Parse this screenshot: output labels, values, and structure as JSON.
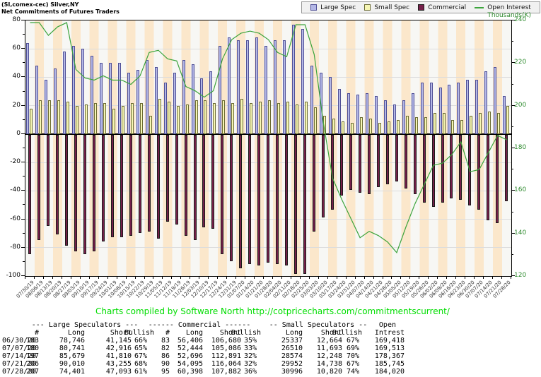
{
  "title": {
    "line1": "(SI,comex-cec) Silver,NY",
    "line2": "Net Commitments of Futures Traders"
  },
  "legend": {
    "items": [
      {
        "label": "Large Spec",
        "type": "box",
        "fill": "#b3b7e6",
        "border": "#4f4f96"
      },
      {
        "label": "Small Spec",
        "type": "box",
        "fill": "#f6f6b4",
        "border": "#6b6b32"
      },
      {
        "label": "Commercial",
        "type": "box",
        "fill": "#76204a",
        "border": "#1a1a1a"
      },
      {
        "label": "Open Interest",
        "type": "line",
        "fill": "#3ca43c"
      }
    ]
  },
  "credit": "Charts compiled by Software North  http://cotpricecharts.com/commitmentscurrent/",
  "chart_data": {
    "type": "bar",
    "title": "Net Commitments of Futures Traders",
    "instrument": "(SI,comex-cec) Silver,NY",
    "categories": [
      "07/30/19",
      "08/06/19",
      "08/13/19",
      "08/20/19",
      "08/27/19",
      "09/03/19",
      "09/10/19",
      "09/17/19",
      "09/24/19",
      "10/01/19",
      "10/08/19",
      "10/15/19",
      "10/22/19",
      "10/29/19",
      "11/05/19",
      "11/12/19",
      "11/19/19",
      "11/26/19",
      "12/03/19",
      "12/10/19",
      "12/17/19",
      "12/24/19",
      "12/31/19",
      "01/07/20",
      "01/14/20",
      "01/21/20",
      "01/28/20",
      "02/04/20",
      "02/11/20",
      "02/18/20",
      "02/25/20",
      "03/03/20",
      "03/10/20",
      "03/17/20",
      "03/24/20",
      "03/31/20",
      "04/07/20",
      "04/14/20",
      "04/21/20",
      "04/28/20",
      "05/05/20",
      "05/12/20",
      "05/19/20",
      "05/26/20",
      "06/02/20",
      "06/09/20",
      "06/16/20",
      "06/23/20",
      "06/30/20",
      "07/07/20",
      "07/14/20",
      "07/21/20",
      "07/28/20"
    ],
    "series": [
      {
        "name": "Large Spec",
        "type": "bar",
        "axis": "left",
        "color": "#b3b7e6",
        "border": "#4f4f96",
        "values": [
          64,
          48,
          38,
          46,
          58,
          62,
          60,
          55,
          50,
          50,
          50,
          43,
          45,
          52,
          47,
          36,
          43,
          52,
          49,
          39,
          44,
          62,
          68,
          66,
          66,
          68,
          62,
          66,
          66,
          77,
          74,
          48,
          43,
          40,
          32,
          29,
          28,
          29,
          27,
          24,
          21,
          24,
          29,
          36,
          36,
          33,
          35,
          36,
          38,
          38,
          44,
          47,
          27
        ]
      },
      {
        "name": "Small Spec",
        "type": "bar",
        "axis": "left",
        "color": "#f6f6b4",
        "border": "#6b6b32",
        "values": [
          18,
          24,
          24,
          24,
          23,
          20,
          21,
          22,
          22,
          18,
          20,
          22,
          22,
          13,
          25,
          23,
          20,
          21,
          24,
          24,
          22,
          24,
          22,
          25,
          22,
          23,
          24,
          22,
          23,
          21,
          23,
          19,
          13,
          11,
          9,
          8,
          12,
          11,
          8,
          9,
          10,
          13,
          12,
          12,
          15,
          15,
          10,
          10,
          13,
          15,
          16,
          15,
          20
        ]
      },
      {
        "name": "Commercial",
        "type": "bar",
        "axis": "left",
        "color": "#76204a",
        "border": "#1a1a1a",
        "values": [
          -84,
          -74,
          -64,
          -70,
          -78,
          -82,
          -84,
          -82,
          -75,
          -72,
          -72,
          -71,
          -69,
          -68,
          -73,
          -61,
          -63,
          -71,
          -74,
          -65,
          -66,
          -84,
          -89,
          -94,
          -91,
          -92,
          -90,
          -91,
          -92,
          -98,
          -98,
          -68,
          -58,
          -53,
          -43,
          -39,
          -41,
          -42,
          -37,
          -35,
          -33,
          -38,
          -42,
          -48,
          -51,
          -48,
          -45,
          -46,
          -50,
          -53,
          -60,
          -62,
          -47
        ]
      },
      {
        "name": "Open Interest",
        "type": "line",
        "axis": "right",
        "color": "#3ca43c",
        "values": [
          239,
          239,
          233,
          237,
          239,
          217,
          213,
          212,
          214,
          212,
          212,
          210,
          214,
          225,
          226,
          222,
          221,
          209,
          207,
          204,
          207,
          222,
          231,
          234,
          235,
          234,
          231,
          225,
          223,
          238,
          238,
          224,
          192,
          166,
          156,
          147,
          138,
          141,
          139,
          136,
          131,
          143,
          154,
          163,
          172,
          173,
          177,
          183,
          169,
          170,
          178,
          186,
          184
        ]
      }
    ],
    "left_axis": {
      "min": -100,
      "max": 80,
      "step": 20,
      "ticks": [
        80,
        60,
        40,
        20,
        0,
        -20,
        -40,
        -60,
        -80,
        -100
      ]
    },
    "right_axis": {
      "min": 120,
      "max": 240,
      "step": 20,
      "label": "Thousands(K)",
      "ticks": [
        240,
        220,
        200,
        180,
        160,
        140,
        120
      ],
      "color": "#2e8b2e"
    },
    "grid": "horizontal",
    "legend_position": "top-right"
  },
  "table": {
    "group_headers": [
      {
        "label": "--- Large Speculators ---"
      },
      {
        "label": "------ Commercial ------"
      },
      {
        "label": "-- Small Speculators --"
      },
      {
        "label": "Open"
      }
    ],
    "columns": [
      "#",
      "Long",
      "Short",
      "Bullish",
      "#",
      "Long",
      "Short",
      "Bullish",
      "Long",
      "Short",
      "Bullish",
      "Intrest"
    ],
    "rows": [
      {
        "date": "06/30/20",
        "cells": [
          "183",
          "78,746",
          "41,145",
          "66%",
          "83",
          "56,406",
          "106,680",
          "35%",
          "25337",
          "12,664",
          "67%",
          "169,418"
        ]
      },
      {
        "date": "07/07/20",
        "cells": [
          "180",
          "80,741",
          "42,916",
          "65%",
          "82",
          "52,444",
          "105,086",
          "33%",
          "26510",
          "11,693",
          "69%",
          "169,513"
        ]
      },
      {
        "date": "07/14/20",
        "cells": [
          "197",
          "85,679",
          "41,810",
          "67%",
          "86",
          "52,696",
          "112,891",
          "32%",
          "28574",
          "12,248",
          "70%",
          "178,367"
        ]
      },
      {
        "date": "07/21/20",
        "cells": [
          "206",
          "90,010",
          "43,255",
          "68%",
          "90",
          "54,095",
          "116,064",
          "32%",
          "29952",
          "14,738",
          "67%",
          "185,745"
        ]
      },
      {
        "date": "07/28/20",
        "cells": [
          "207",
          "74,401",
          "47,093",
          "61%",
          "95",
          "60,398",
          "107,882",
          "36%",
          "30996",
          "10,820",
          "74%",
          "184,020"
        ]
      }
    ]
  }
}
